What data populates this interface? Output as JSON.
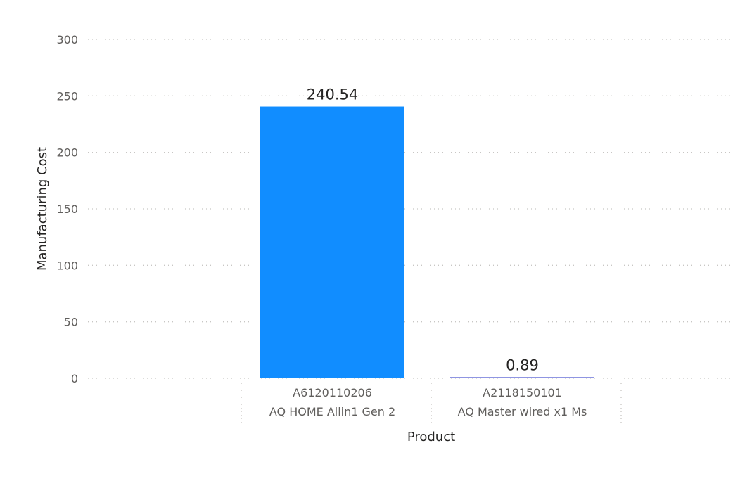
{
  "chart_data": {
    "type": "bar",
    "categories": [
      [
        "A6120110206",
        "AQ HOME Allin1 Gen 2"
      ],
      [
        "A2118150101",
        "AQ Master wired x1 Ms"
      ]
    ],
    "values": [
      240.54,
      0.89
    ],
    "data_labels": [
      "240.54",
      "0.89"
    ],
    "xlabel": "Product",
    "ylabel": "Manufacturing Cost",
    "ylim": [
      0,
      300
    ],
    "yticks": [
      0,
      50,
      100,
      150,
      200,
      250,
      300
    ],
    "grid": true,
    "bar_colors": [
      "#118dff",
      "#1f2bc4"
    ]
  }
}
